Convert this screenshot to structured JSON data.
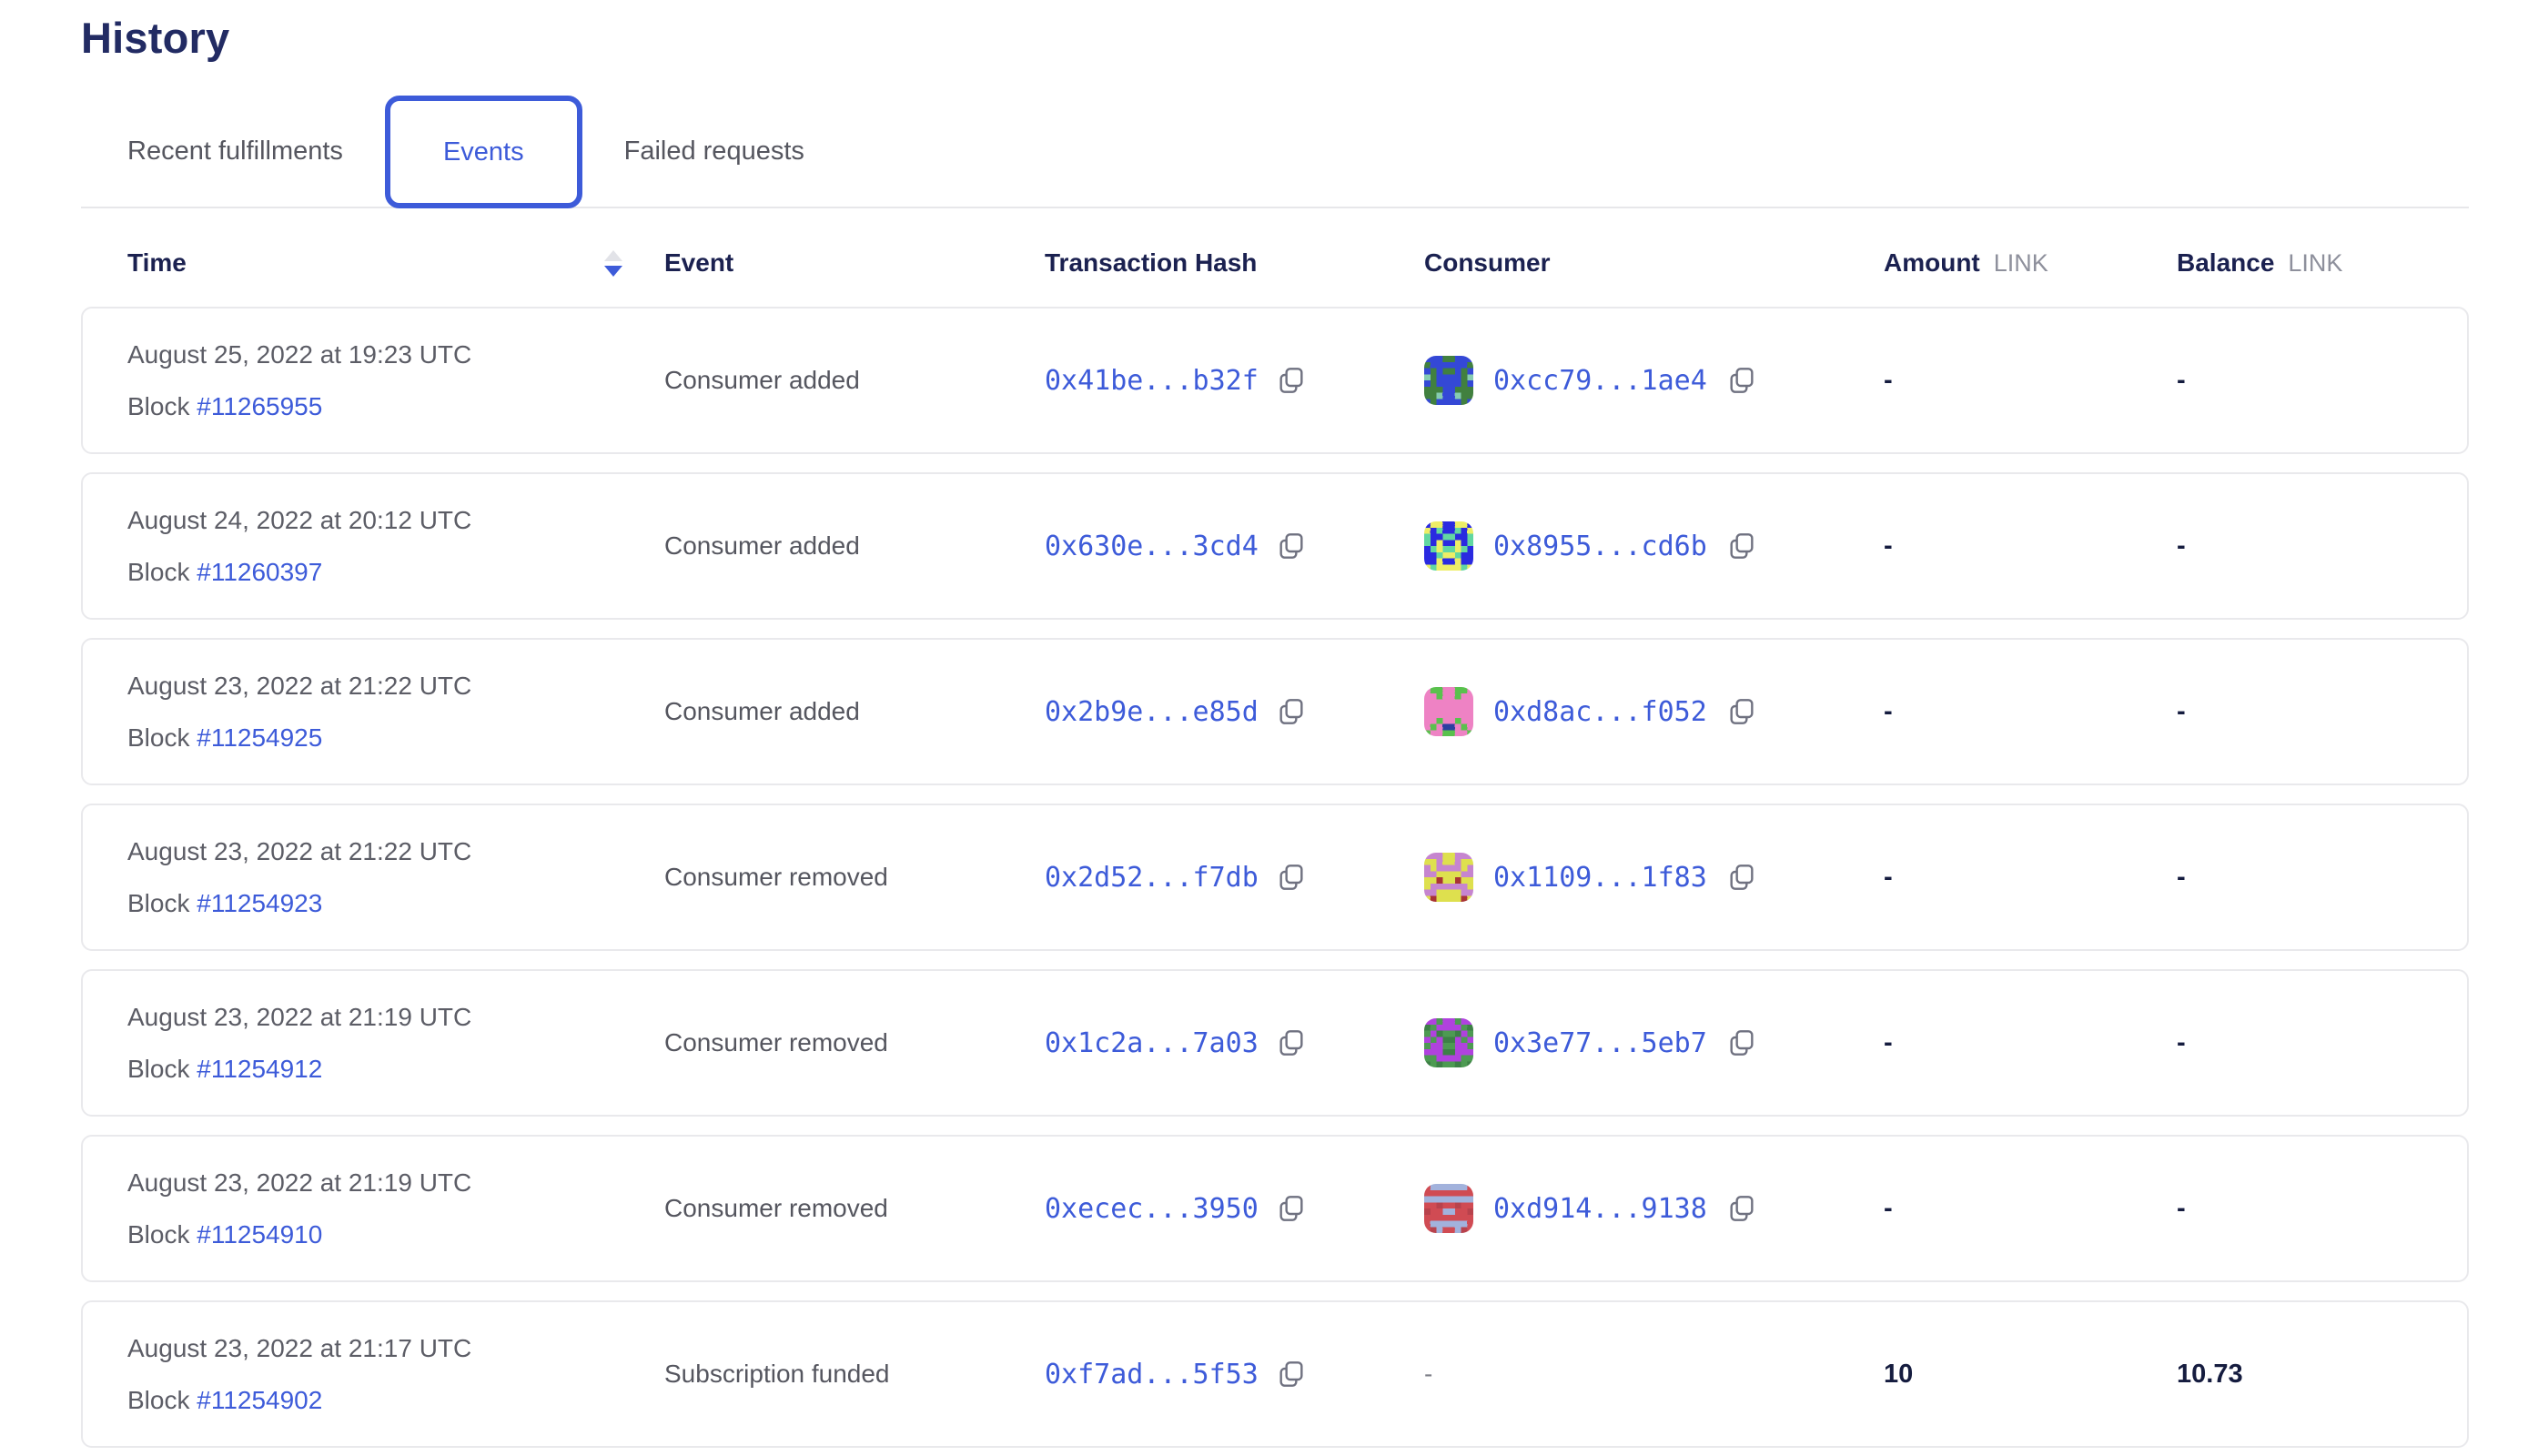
{
  "page": {
    "title": "History"
  },
  "colors": {
    "accent_blue": "#3d5bd9",
    "heading_navy": "#222b63",
    "header_text": "#1b2150",
    "body_gray": "#5c5d66",
    "unit_gray": "#8e909c",
    "card_border": "#e9e9ec",
    "value_dark": "#151c3f"
  },
  "icons": {
    "copy": "copy-icon",
    "sort": "sort-arrows-icon"
  },
  "tabs": [
    {
      "label": "Recent fulfillments",
      "active": false
    },
    {
      "label": "Events",
      "active": true
    },
    {
      "label": "Failed requests",
      "active": false
    }
  ],
  "table": {
    "headers": {
      "time": "Time",
      "event": "Event",
      "tx": "Transaction Hash",
      "consumer": "Consumer",
      "amount": "Amount",
      "balance": "Balance",
      "unit": "LINK"
    },
    "rows": [
      {
        "time": "August 25, 2022 at 19:23 UTC",
        "block_label": "Block",
        "block_number": "#11265955",
        "event": "Consumer added",
        "tx_hash": "0x41be...b32f",
        "consumer": "0xcc79...1ae4",
        "avatar_colors": {
          "bg": "#41803f",
          "fg": "#3448d6",
          "spot": "#86ccb1"
        },
        "amount": "-",
        "balance": "-"
      },
      {
        "time": "August 24, 2022 at 20:12 UTC",
        "block_label": "Block",
        "block_number": "#11260397",
        "event": "Consumer added",
        "tx_hash": "0x630e...3cd4",
        "consumer": "0x8955...cd6b",
        "avatar_colors": {
          "bg": "#2a2ae0",
          "fg": "#edee66",
          "spot": "#62d7a1"
        },
        "amount": "-",
        "balance": "-"
      },
      {
        "time": "August 23, 2022 at 21:22 UTC",
        "block_label": "Block",
        "block_number": "#11254925",
        "event": "Consumer added",
        "tx_hash": "0x2b9e...e85d",
        "consumer": "0xd8ac...f052",
        "avatar_colors": {
          "bg": "#59c14d",
          "fg": "#ee82c4",
          "spot": "#2c3fa0"
        },
        "amount": "-",
        "balance": "-"
      },
      {
        "time": "August 23, 2022 at 21:22 UTC",
        "block_label": "Block",
        "block_number": "#11254923",
        "event": "Consumer removed",
        "tx_hash": "0x2d52...f7db",
        "consumer": "0x1109...1f83",
        "avatar_colors": {
          "bg": "#c685cf",
          "fg": "#dee04e",
          "spot": "#a83434"
        },
        "amount": "-",
        "balance": "-"
      },
      {
        "time": "August 23, 2022 at 21:19 UTC",
        "block_label": "Block",
        "block_number": "#11254912",
        "event": "Consumer removed",
        "tx_hash": "0x1c2a...7a03",
        "consumer": "0x3e77...5eb7",
        "avatar_colors": {
          "bg": "#4d9a52",
          "fg": "#b042de",
          "spot": "#3d8046"
        },
        "amount": "-",
        "balance": "-"
      },
      {
        "time": "August 23, 2022 at 21:19 UTC",
        "block_label": "Block",
        "block_number": "#11254910",
        "event": "Consumer removed",
        "tx_hash": "0xecec...3950",
        "consumer": "0xd914...9138",
        "avatar_colors": {
          "bg": "#d04b53",
          "fg": "#a2b2dc",
          "spot": "#b8424c"
        },
        "amount": "-",
        "balance": "-"
      },
      {
        "time": "August 23, 2022 at 21:17 UTC",
        "block_label": "Block",
        "block_number": "#11254902",
        "event": "Subscription funded",
        "tx_hash": "0xf7ad...5f53",
        "consumer": "-",
        "avatar_colors": null,
        "amount": "10",
        "balance": "10.73"
      }
    ]
  }
}
